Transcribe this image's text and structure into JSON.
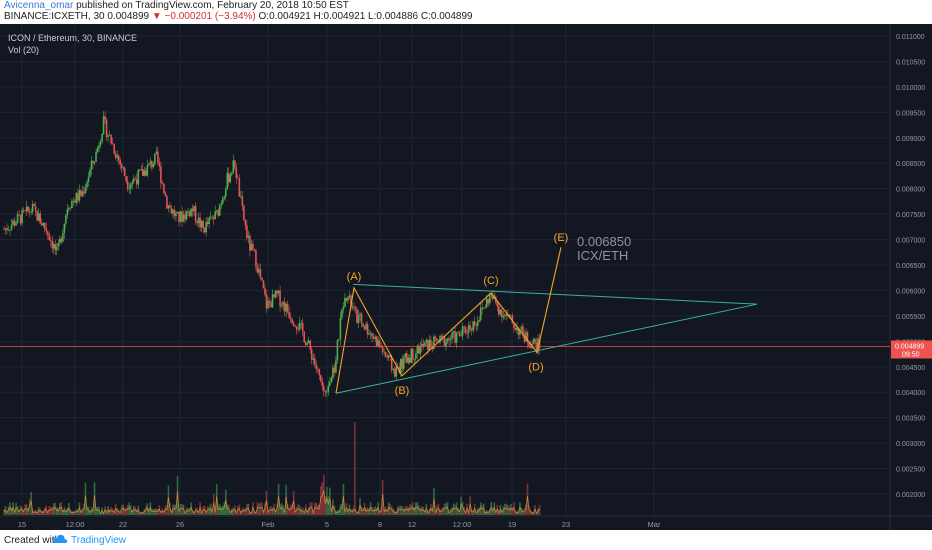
{
  "header": {
    "author": "Avicenna_omar",
    "published": "published on TradingView.com, February 20, 2018 10:50 EST",
    "symbol": "BINANCE:ICXETH, 30",
    "last": "0.004899",
    "change": "▼ −0.000201 (−3.94%)",
    "ohlc": "O:0.004921 H:0.004921 L:0.004886 C:0.004899"
  },
  "legend": {
    "title": "ICON / Ethereum, 30, BINANCE",
    "vol": "Vol (20)"
  },
  "footer": {
    "created_with": "Created with",
    "brand": "TradingView"
  },
  "colors": {
    "background": "#131722",
    "grid": "#1e2433",
    "candle_up": "#4caf50",
    "candle_down": "#e25555",
    "wave": "#f5a623",
    "triangle": "#39b39e",
    "price_line": "#ef5350",
    "axis_text": "#9598a1"
  },
  "chart_data": {
    "type": "candlestick",
    "price_ticks": [
      "0.011000",
      "0.010500",
      "0.010000",
      "0.009500",
      "0.009000",
      "0.008500",
      "0.008000",
      "0.007500",
      "0.007000",
      "0.006500",
      "0.006000",
      "0.005500",
      "0.005000",
      "0.004500",
      "0.004000",
      "0.003500",
      "0.003000",
      "0.002500",
      "0.002000"
    ],
    "date_ticks": [
      "15",
      "12:00",
      "22",
      "26",
      "Feb",
      "5",
      "8",
      "12",
      "12:00",
      "19",
      "23",
      "Mar"
    ],
    "last_price": "0.004899",
    "countdown": "09:50",
    "price_path": [
      {
        "t": 0,
        "p": 0.0072
      },
      {
        "t": 0.8,
        "p": 0.0074
      },
      {
        "t": 1.6,
        "p": 0.0076
      },
      {
        "t": 2.4,
        "p": 0.0072
      },
      {
        "t": 3.0,
        "p": 0.0067
      },
      {
        "t": 3.6,
        "p": 0.0077
      },
      {
        "t": 4.4,
        "p": 0.0079
      },
      {
        "t": 5.2,
        "p": 0.0087
      },
      {
        "t": 5.6,
        "p": 0.0093
      },
      {
        "t": 6.2,
        "p": 0.0088
      },
      {
        "t": 7.0,
        "p": 0.0081
      },
      {
        "t": 7.8,
        "p": 0.0083
      },
      {
        "t": 8.6,
        "p": 0.0086
      },
      {
        "t": 9.2,
        "p": 0.0077
      },
      {
        "t": 9.8,
        "p": 0.0074
      },
      {
        "t": 10.6,
        "p": 0.0076
      },
      {
        "t": 11.2,
        "p": 0.0072
      },
      {
        "t": 12.0,
        "p": 0.0075
      },
      {
        "t": 12.6,
        "p": 0.0082
      },
      {
        "t": 13.0,
        "p": 0.0085
      },
      {
        "t": 13.4,
        "p": 0.0076
      },
      {
        "t": 13.8,
        "p": 0.0069
      },
      {
        "t": 14.2,
        "p": 0.0066
      },
      {
        "t": 14.8,
        "p": 0.0057
      },
      {
        "t": 15.4,
        "p": 0.0059
      },
      {
        "t": 16.2,
        "p": 0.0055
      },
      {
        "t": 16.8,
        "p": 0.0052
      },
      {
        "t": 17.4,
        "p": 0.0047
      },
      {
        "t": 18.0,
        "p": 0.004
      },
      {
        "t": 18.6,
        "p": 0.0044
      },
      {
        "t": 19.2,
        "p": 0.006
      },
      {
        "t": 19.8,
        "p": 0.0055
      },
      {
        "t": 20.6,
        "p": 0.0052
      },
      {
        "t": 21.4,
        "p": 0.0048
      },
      {
        "t": 22.0,
        "p": 0.0044
      },
      {
        "t": 22.8,
        "p": 0.0047
      },
      {
        "t": 23.6,
        "p": 0.0049
      },
      {
        "t": 24.6,
        "p": 0.005
      },
      {
        "t": 25.6,
        "p": 0.0051
      },
      {
        "t": 26.6,
        "p": 0.0054
      },
      {
        "t": 27.4,
        "p": 0.0059
      },
      {
        "t": 28.0,
        "p": 0.0056
      },
      {
        "t": 28.8,
        "p": 0.0053
      },
      {
        "t": 29.6,
        "p": 0.005
      },
      {
        "t": 30.2,
        "p": 0.0049
      }
    ],
    "wave_labels": [
      {
        "label": "(A)",
        "price": 0.00605
      },
      {
        "label": "(B)",
        "price": 0.00432
      },
      {
        "label": "(C)",
        "price": 0.00595
      },
      {
        "label": "(D)",
        "price": 0.00478
      },
      {
        "label": "(E)",
        "price": 0.00685
      }
    ],
    "target": {
      "value": "0.006850",
      "pair": "ICX/ETH"
    }
  }
}
